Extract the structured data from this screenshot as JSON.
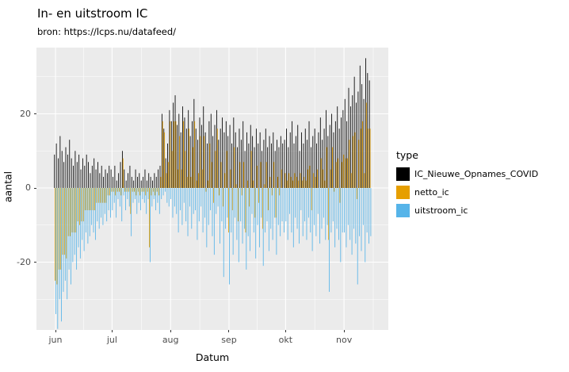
{
  "title": "In- en uitstroom IC",
  "subtitle": "bron: https://lcps.nu/datafeed/",
  "x_axis_label": "Datum",
  "y_axis_label": "aantal",
  "panel_color": "#EBEBEB",
  "grid_color": "#FFFFFF",
  "axis_text_color": "#4d4d4d",
  "legend": {
    "title": "type",
    "items": [
      {
        "label": "IC_Nieuwe_Opnames_COVID",
        "color": "#000000"
      },
      {
        "label": "netto_ic",
        "color": "#E69F00"
      },
      {
        "label": "uitstroom_ic",
        "color": "#56B4E9"
      }
    ]
  },
  "axis": {
    "y_ticks": [
      -20,
      0,
      20
    ],
    "y_minor": [
      -30,
      -10,
      10,
      30
    ],
    "x_ticks": [
      "jun",
      "jul",
      "aug",
      "sep",
      "okt",
      "nov"
    ],
    "x_tick_days": [
      0,
      30,
      61,
      92,
      122,
      153
    ]
  },
  "chart_data": {
    "type": "bar",
    "position": "dodge",
    "x_unit": "day",
    "start_date": "2020-06-01",
    "n_days": 168,
    "month_day_counts": [
      30,
      31,
      31,
      30,
      31,
      15
    ],
    "ylim": [
      -38,
      38
    ],
    "xlabel": "Datum",
    "ylabel": "aantal",
    "grid": true,
    "legend_position": "right",
    "series": [
      {
        "name": "IC_Nieuwe_Opnames_COVID",
        "color": "#000000",
        "values": [
          9,
          12,
          8,
          14,
          10,
          7,
          11,
          9,
          13,
          8,
          6,
          10,
          7,
          9,
          5,
          8,
          6,
          9,
          7,
          4,
          6,
          8,
          5,
          7,
          4,
          6,
          3,
          5,
          4,
          6,
          5,
          3,
          6,
          2,
          4,
          7,
          10,
          5,
          2,
          4,
          6,
          3,
          2,
          5,
          3,
          4,
          2,
          3,
          5,
          2,
          4,
          3,
          2,
          4,
          3,
          5,
          6,
          20,
          16,
          8,
          12,
          21,
          18,
          23,
          25,
          17,
          20,
          15,
          22,
          19,
          16,
          21,
          14,
          18,
          24,
          16,
          13,
          19,
          17,
          22,
          15,
          12,
          18,
          20,
          14,
          17,
          21,
          13,
          16,
          19,
          15,
          18,
          14,
          17,
          12,
          19,
          15,
          11,
          16,
          13,
          18,
          10,
          15,
          12,
          17,
          14,
          11,
          16,
          12,
          15,
          10,
          13,
          16,
          11,
          14,
          12,
          15,
          10,
          13,
          11,
          14,
          12,
          13,
          16,
          11,
          15,
          18,
          12,
          14,
          17,
          10,
          15,
          12,
          16,
          13,
          18,
          11,
          14,
          16,
          12,
          15,
          19,
          13,
          16,
          21,
          14,
          17,
          20,
          15,
          18,
          22,
          16,
          19,
          21,
          24,
          18,
          27,
          22,
          25,
          30,
          23,
          26,
          33,
          28,
          24,
          35,
          31,
          29
        ]
      },
      {
        "name": "netto_ic",
        "color": "#E69F00",
        "values": [
          -25,
          -26,
          -22,
          -22,
          -18,
          -18,
          -19,
          -13,
          -13,
          -12,
          -12,
          -12,
          -9,
          -10,
          -9,
          -9,
          -6,
          -6,
          -6,
          -6,
          -6,
          -6,
          -4,
          -4,
          -4,
          -4,
          -4,
          -4,
          -2,
          -2,
          -1,
          -1,
          -2,
          -1,
          -1,
          -2,
          8,
          -1,
          -1,
          -1,
          -7,
          -1,
          -1,
          -2,
          -1,
          -2,
          -1,
          -1,
          -2,
          -1,
          -16,
          -2,
          -1,
          -2,
          -1,
          -2,
          3,
          18,
          15,
          4,
          7,
          18,
          10,
          18,
          18,
          5,
          14,
          5,
          18,
          10,
          3,
          16,
          3,
          11,
          18,
          2,
          4,
          14,
          5,
          14,
          -1,
          2,
          12,
          7,
          -4,
          10,
          16,
          -2,
          7,
          -5,
          4,
          10,
          -12,
          5,
          -6,
          11,
          1,
          -9,
          7,
          -2,
          7,
          -12,
          2,
          -5,
          10,
          2,
          -8,
          6,
          -4,
          7,
          -11,
          1,
          7,
          -6,
          3,
          -2,
          7,
          -8,
          3,
          -2,
          5,
          0,
          4,
          2,
          4,
          3,
          2,
          4,
          3,
          2,
          4,
          2,
          3,
          2,
          5,
          6,
          -6,
          4,
          3,
          5,
          0,
          8,
          5,
          2,
          11,
          -14,
          5,
          11,
          -1,
          7,
          8,
          -4,
          7,
          9,
          8,
          8,
          13,
          4,
          14,
          15,
          -3,
          13,
          16,
          18,
          4,
          23,
          16,
          16
        ]
      },
      {
        "name": "uitstroom_ic",
        "color": "#56B4E9",
        "values": [
          -34,
          -38,
          -30,
          -36,
          -28,
          -25,
          -30,
          -22,
          -26,
          -20,
          -18,
          -22,
          -16,
          -19,
          -14,
          -17,
          -12,
          -15,
          -13,
          -10,
          -12,
          -14,
          -9,
          -11,
          -8,
          -10,
          -7,
          -9,
          -6,
          -8,
          -6,
          -4,
          -8,
          -3,
          -5,
          -9,
          -2,
          -6,
          -3,
          -5,
          -13,
          -4,
          -3,
          -7,
          -4,
          -6,
          -3,
          -4,
          -7,
          -3,
          -20,
          -5,
          -3,
          -6,
          -4,
          -7,
          -3,
          -2,
          -1,
          -4,
          -5,
          -3,
          -8,
          -5,
          -7,
          -12,
          -6,
          -10,
          -4,
          -9,
          -13,
          -5,
          -11,
          -7,
          -6,
          -14,
          -9,
          -5,
          -12,
          -8,
          -16,
          -10,
          -6,
          -13,
          -18,
          -7,
          -5,
          -15,
          -9,
          -24,
          -11,
          -8,
          -26,
          -12,
          -18,
          -8,
          -14,
          -20,
          -9,
          -15,
          -11,
          -22,
          -13,
          -17,
          -7,
          -12,
          -19,
          -10,
          -16,
          -8,
          -21,
          -12,
          -9,
          -17,
          -11,
          -14,
          -8,
          -18,
          -10,
          -13,
          -9,
          -12,
          -9,
          -14,
          -7,
          -12,
          -16,
          -8,
          -11,
          -15,
          -6,
          -13,
          -9,
          -14,
          -8,
          -12,
          -17,
          -10,
          -13,
          -7,
          -15,
          -11,
          -8,
          -14,
          -10,
          -28,
          -12,
          -9,
          -16,
          -11,
          -14,
          -20,
          -12,
          -12,
          -16,
          -10,
          -14,
          -18,
          -11,
          -15,
          -26,
          -13,
          -17,
          -10,
          -20,
          -12,
          -15,
          -13
        ]
      }
    ]
  }
}
